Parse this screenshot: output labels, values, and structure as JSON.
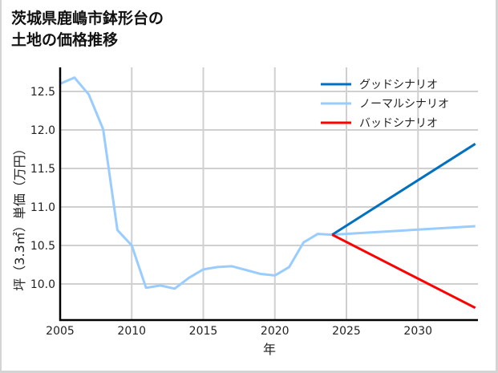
{
  "title": "茨城県鹿嶋市鉢形台の\n土地の価格推移",
  "chart_data": {
    "type": "line",
    "title": "茨城県鹿嶋市鉢形台の土地の価格推移",
    "xlabel": "年",
    "ylabel": "坪（3.3㎡）単価（万円）",
    "xlim": [
      2005,
      2034
    ],
    "ylim": [
      9.55,
      12.8
    ],
    "xticks": [
      2005,
      2010,
      2015,
      2020,
      2025,
      2030
    ],
    "yticks": [
      10.0,
      10.5,
      11.0,
      11.5,
      12.0,
      12.5
    ],
    "ytick_labels": [
      "10.0",
      "10.5",
      "11.0",
      "11.5",
      "12.0",
      "12.5"
    ],
    "grid": true,
    "legend_position": "upper right",
    "series": [
      {
        "name": "グッドシナリオ",
        "color": "#0070c0",
        "x": [
          2024,
          2034
        ],
        "values": [
          10.64,
          11.82
        ]
      },
      {
        "name": "ノーマルシナリオ",
        "color": "#99ccff",
        "x": [
          2005,
          2006,
          2007,
          2008,
          2009,
          2010,
          2011,
          2012,
          2013,
          2014,
          2015,
          2016,
          2017,
          2018,
          2019,
          2020,
          2021,
          2022,
          2023,
          2024,
          2034
        ],
        "values": [
          12.6,
          12.68,
          12.46,
          12.01,
          10.7,
          10.5,
          9.95,
          9.98,
          9.94,
          10.08,
          10.19,
          10.22,
          10.23,
          10.18,
          10.13,
          10.11,
          10.22,
          10.54,
          10.65,
          10.64,
          10.75
        ]
      },
      {
        "name": "バッドシナリオ",
        "color": "#ff0000",
        "x": [
          2024,
          2034
        ],
        "values": [
          10.64,
          9.69
        ]
      }
    ]
  }
}
